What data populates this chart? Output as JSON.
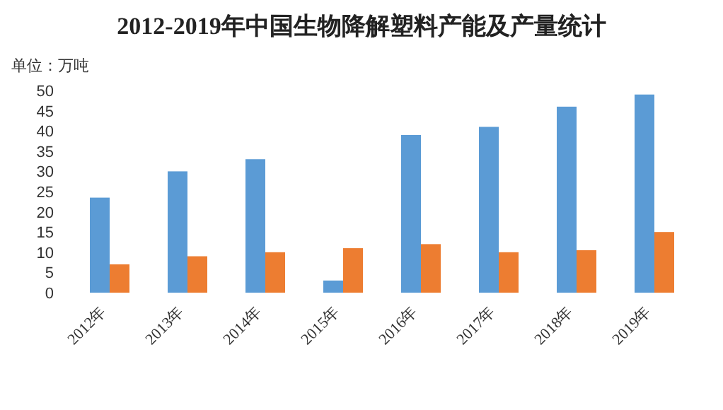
{
  "chart_data": {
    "type": "bar",
    "title": "2012-2019年中国生物降解塑料产能及产量统计",
    "ylabel": "单位：万吨",
    "categories": [
      "2012年",
      "2013年",
      "2014年",
      "2015年",
      "2016年",
      "2017年",
      "2018年",
      "2019年"
    ],
    "series": [
      {
        "color": "#5b9bd5",
        "values": [
          23.5,
          30,
          33,
          3,
          39,
          41,
          46,
          49
        ]
      },
      {
        "color": "#ed7d31",
        "values": [
          7,
          9,
          10,
          11,
          12,
          10,
          10.5,
          15
        ]
      }
    ],
    "ylim": [
      0,
      50
    ],
    "yticks": [
      0,
      5,
      10,
      15,
      20,
      25,
      30,
      35,
      40,
      45,
      50
    ]
  }
}
